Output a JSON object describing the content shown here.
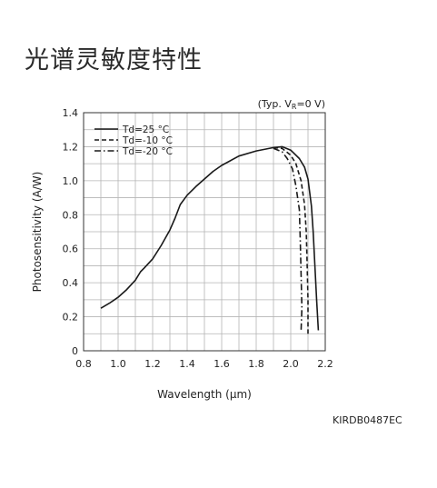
{
  "page": {
    "title": "光谱灵敏度特性",
    "doc_code": "KIRDB0487EC"
  },
  "chart_data": {
    "type": "line",
    "title": "",
    "condition_note": "(Typ. V_R=0 V)",
    "xlabel": "Wavelength (μm)",
    "ylabel": "Photosensitivity (A/W)",
    "xlim": [
      0.8,
      2.2
    ],
    "ylim": [
      0,
      1.4
    ],
    "x_ticks": [
      "0.8",
      "1.0",
      "1.2",
      "1.4",
      "1.6",
      "1.8",
      "2.0",
      "2.2"
    ],
    "y_ticks": [
      "0",
      "0.2",
      "0.4",
      "0.6",
      "0.8",
      "1.0",
      "1.2",
      "1.4"
    ],
    "grid": true,
    "legend_position": "top-left",
    "series": [
      {
        "name": "Td=25 °C",
        "style": "solid",
        "points": [
          [
            0.9,
            0.25
          ],
          [
            0.95,
            0.28
          ],
          [
            1.0,
            0.315
          ],
          [
            1.05,
            0.36
          ],
          [
            1.1,
            0.415
          ],
          [
            1.13,
            0.465
          ],
          [
            1.15,
            0.485
          ],
          [
            1.2,
            0.54
          ],
          [
            1.25,
            0.62
          ],
          [
            1.3,
            0.71
          ],
          [
            1.33,
            0.78
          ],
          [
            1.36,
            0.86
          ],
          [
            1.4,
            0.915
          ],
          [
            1.45,
            0.965
          ],
          [
            1.5,
            1.01
          ],
          [
            1.55,
            1.055
          ],
          [
            1.6,
            1.09
          ],
          [
            1.7,
            1.145
          ],
          [
            1.8,
            1.175
          ],
          [
            1.9,
            1.195
          ],
          [
            1.95,
            1.2
          ],
          [
            2.0,
            1.18
          ],
          [
            2.05,
            1.13
          ],
          [
            2.08,
            1.08
          ],
          [
            2.1,
            1.01
          ],
          [
            2.12,
            0.85
          ],
          [
            2.13,
            0.7
          ],
          [
            2.14,
            0.5
          ],
          [
            2.15,
            0.3
          ],
          [
            2.16,
            0.12
          ]
        ]
      },
      {
        "name": "Td=-10 °C",
        "style": "dashed",
        "points": [
          [
            1.9,
            1.195
          ],
          [
            1.95,
            1.19
          ],
          [
            2.0,
            1.15
          ],
          [
            2.03,
            1.1
          ],
          [
            2.06,
            1.0
          ],
          [
            2.08,
            0.86
          ],
          [
            2.09,
            0.7
          ],
          [
            2.095,
            0.5
          ],
          [
            2.1,
            0.3
          ],
          [
            2.1,
            0.1
          ]
        ]
      },
      {
        "name": "Td=-20 °C",
        "style": "dashdot",
        "points": [
          [
            1.9,
            1.19
          ],
          [
            1.95,
            1.17
          ],
          [
            1.98,
            1.13
          ],
          [
            2.01,
            1.07
          ],
          [
            2.03,
            0.97
          ],
          [
            2.05,
            0.83
          ],
          [
            2.055,
            0.65
          ],
          [
            2.06,
            0.45
          ],
          [
            2.065,
            0.25
          ],
          [
            2.06,
            0.12
          ]
        ]
      }
    ],
    "colors": {
      "line": "#1a1a1a",
      "grid": "#b4b4b4",
      "axis": "#333333"
    }
  }
}
